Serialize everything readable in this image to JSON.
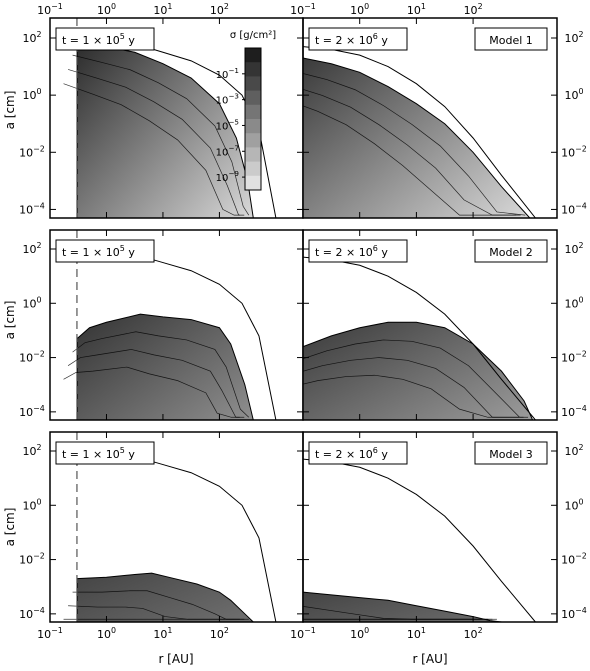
{
  "figure": {
    "xlabel": "r [AU]",
    "ylabel": "a [cm]",
    "colorbar": {
      "label": "σ [g/cm²]",
      "ticks": [
        {
          "exp": -1,
          "label": "10",
          "sup": "−1"
        },
        {
          "exp": -3,
          "label": "10",
          "sup": "−3"
        },
        {
          "exp": -5,
          "label": "10",
          "sup": "−5"
        },
        {
          "exp": -7,
          "label": "10",
          "sup": "−7"
        },
        {
          "exp": -9,
          "label": "10",
          "sup": "−9"
        }
      ],
      "range": [
        -10,
        1
      ]
    },
    "x_ticks": [
      {
        "exp": -1,
        "label": "10",
        "sup": "−1"
      },
      {
        "exp": 0,
        "label": "10",
        "sup": "0"
      },
      {
        "exp": 1,
        "label": "10",
        "sup": "1"
      },
      {
        "exp": 2,
        "label": "10",
        "sup": "2"
      }
    ],
    "y_ticks": [
      {
        "exp": 2,
        "label": "10",
        "sup": "2"
      },
      {
        "exp": 0,
        "label": "10",
        "sup": "0"
      },
      {
        "exp": -2,
        "label": "10",
        "sup": "−2"
      },
      {
        "exp": -4,
        "label": "10",
        "sup": "−4"
      }
    ]
  },
  "chart_data": [
    {
      "type": "heatmap",
      "model": "Model 1",
      "time_label": "t = 1 × 10",
      "time_exp": "5",
      "time_unit": " y",
      "xscale": "log",
      "yscale": "log",
      "xlim": [
        0.1,
        3000
      ],
      "ylim": [
        5e-05,
        500
      ],
      "inner_edge_AU": 0.3,
      "max_size_curve": {
        "log_r": [
          -0.5,
          0,
          0.5,
          1,
          1.5,
          2,
          2.4,
          2.7,
          3.0
        ],
        "log_a": [
          2.0,
          1.95,
          1.8,
          1.5,
          1.2,
          0.7,
          0.0,
          -1.2,
          -4.3
        ]
      },
      "front": {
        "log_r": [
          -0.52,
          0,
          0.5,
          1,
          1.5,
          2,
          2.3,
          2.5,
          2.6
        ],
        "log_a": [
          1.9,
          1.7,
          1.5,
          1.1,
          0.6,
          -0.3,
          -1.5,
          -3.0,
          -4.3
        ]
      },
      "fill_dark": "#2a2a2a",
      "fill_light": "#e6e6e6"
    },
    {
      "type": "heatmap",
      "model": "Model 1",
      "time_label": "t = 2 × 10",
      "time_exp": "6",
      "time_unit": " y",
      "xscale": "log",
      "yscale": "log",
      "xlim": [
        0.1,
        3000
      ],
      "ylim": [
        5e-05,
        500
      ],
      "max_size_curve": {
        "log_r": [
          -1,
          -0.5,
          0,
          0.5,
          1,
          1.5,
          2,
          2.5,
          3.1
        ],
        "log_a": [
          1.7,
          1.6,
          1.4,
          1.0,
          0.4,
          -0.4,
          -1.5,
          -2.8,
          -4.3
        ]
      },
      "front": {
        "log_r": [
          -1,
          -0.5,
          0,
          0.5,
          1,
          1.5,
          2,
          2.5,
          3.0
        ],
        "log_a": [
          1.3,
          1.1,
          0.8,
          0.3,
          -0.3,
          -1.0,
          -2.0,
          -3.2,
          -4.3
        ]
      },
      "fill_dark": "#3a3a3a",
      "fill_light": "#e6e6e6"
    },
    {
      "type": "heatmap",
      "model": "Model 2",
      "time_label": "t = 1 × 10",
      "time_exp": "5",
      "time_unit": " y",
      "xscale": "log",
      "yscale": "log",
      "xlim": [
        0.1,
        3000
      ],
      "ylim": [
        5e-05,
        500
      ],
      "inner_edge_AU": 0.3,
      "max_size_curve": {
        "log_r": [
          -0.5,
          0,
          0.5,
          1,
          1.5,
          2,
          2.4,
          2.7,
          3.0
        ],
        "log_a": [
          2.0,
          1.95,
          1.8,
          1.5,
          1.2,
          0.7,
          0.0,
          -1.2,
          -4.3
        ]
      },
      "front": {
        "log_r": [
          -0.52,
          -0.3,
          0,
          0.6,
          1,
          1.5,
          2,
          2.2,
          2.45,
          2.6
        ],
        "log_a": [
          -1.3,
          -0.9,
          -0.7,
          -0.4,
          -0.5,
          -0.6,
          -0.9,
          -1.5,
          -3.0,
          -4.3
        ]
      },
      "fill_dark": "#333333",
      "fill_light": "#9a9a9a"
    },
    {
      "type": "heatmap",
      "model": "Model 2",
      "time_label": "t = 2 × 10",
      "time_exp": "6",
      "time_unit": " y",
      "xscale": "log",
      "yscale": "log",
      "xlim": [
        0.1,
        3000
      ],
      "ylim": [
        5e-05,
        500
      ],
      "max_size_curve": {
        "log_r": [
          -1,
          -0.5,
          0,
          0.5,
          1,
          1.5,
          2,
          2.5,
          3.1
        ],
        "log_a": [
          1.7,
          1.6,
          1.4,
          1.0,
          0.4,
          -0.4,
          -1.5,
          -2.8,
          -4.3
        ]
      },
      "front": {
        "log_r": [
          -1,
          -0.5,
          0,
          0.5,
          1,
          1.5,
          2,
          2.5,
          2.9,
          3.05
        ],
        "log_a": [
          -1.6,
          -1.2,
          -0.9,
          -0.7,
          -0.7,
          -0.9,
          -1.5,
          -2.5,
          -3.6,
          -4.3
        ]
      },
      "fill_dark": "#3a3a3a",
      "fill_light": "#a8a8a8"
    },
    {
      "type": "heatmap",
      "model": "Model 3",
      "time_label": "t = 1 × 10",
      "time_exp": "5",
      "time_unit": " y",
      "xscale": "log",
      "yscale": "log",
      "xlim": [
        0.1,
        3000
      ],
      "ylim": [
        5e-05,
        500
      ],
      "inner_edge_AU": 0.3,
      "max_size_curve": {
        "log_r": [
          -0.5,
          0,
          0.5,
          1,
          1.5,
          2,
          2.4,
          2.7,
          3.0
        ],
        "log_a": [
          2.0,
          1.95,
          1.8,
          1.5,
          1.2,
          0.7,
          0.0,
          -1.2,
          -4.3
        ]
      },
      "front": {
        "log_r": [
          -0.52,
          0,
          0.5,
          0.8,
          1.2,
          1.6,
          2,
          2.2,
          2.5,
          2.6
        ],
        "log_a": [
          -2.7,
          -2.65,
          -2.55,
          -2.5,
          -2.7,
          -2.9,
          -3.2,
          -3.5,
          -4.1,
          -4.3
        ]
      },
      "fill_dark": "#444444",
      "fill_light": "#7a7a7a"
    },
    {
      "type": "heatmap",
      "model": "Model 3",
      "time_label": "t = 2 × 10",
      "time_exp": "6",
      "time_unit": " y",
      "xscale": "log",
      "yscale": "log",
      "xlim": [
        0.1,
        3000
      ],
      "ylim": [
        5e-05,
        500
      ],
      "max_size_curve": {
        "log_r": [
          -1,
          -0.5,
          0,
          0.5,
          1,
          1.5,
          2,
          2.5,
          3.1
        ],
        "log_a": [
          1.7,
          1.6,
          1.4,
          1.0,
          0.4,
          -0.4,
          -1.5,
          -2.8,
          -4.3
        ]
      },
      "front": {
        "log_r": [
          -1,
          -0.5,
          0,
          0.5,
          1,
          1.5,
          2,
          2.3,
          2.5
        ],
        "log_a": [
          -3.2,
          -3.3,
          -3.4,
          -3.5,
          -3.7,
          -3.9,
          -4.1,
          -4.25,
          -4.3
        ]
      },
      "fill_dark": "#444444",
      "fill_light": "#7a7a7a"
    }
  ]
}
